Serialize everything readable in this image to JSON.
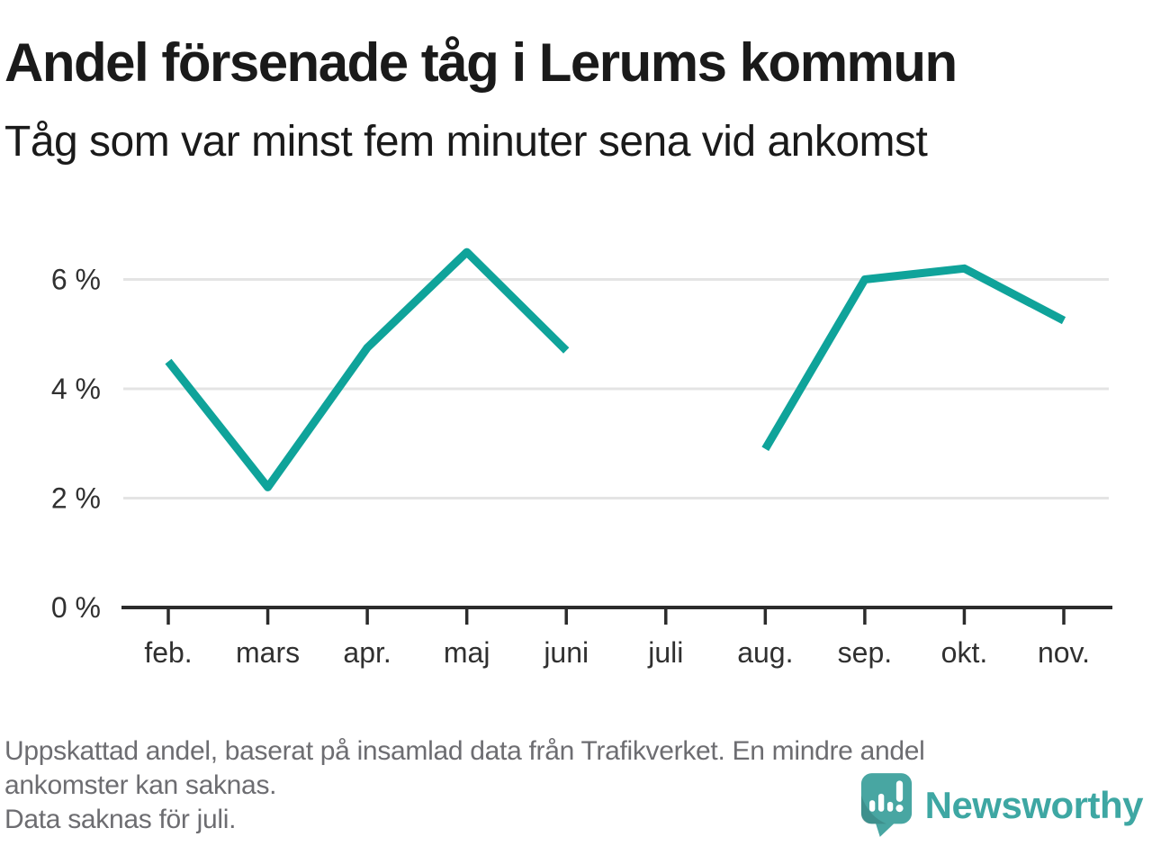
{
  "header": {
    "title": "Andel försenade tåg i Lerums kommun",
    "subtitle": "Tåg som var minst fem minuter sena vid ankomst"
  },
  "chart_data": {
    "type": "line",
    "title": "Andel försenade tåg i Lerums kommun",
    "subtitle": "Tåg som var minst fem minuter sena vid ankomst",
    "categories": [
      "feb.",
      "mars",
      "apr.",
      "maj",
      "juni",
      "juli",
      "aug.",
      "sep.",
      "okt.",
      "nov."
    ],
    "values": [
      4.5,
      2.2,
      4.75,
      6.5,
      4.7,
      null,
      2.9,
      6.0,
      6.2,
      5.25
    ],
    "unit": "%",
    "y_ticks": [
      0,
      2,
      4,
      6
    ],
    "y_tick_labels": [
      "0 %",
      "2 %",
      "4 %",
      "6 %"
    ],
    "ylim": [
      0,
      7
    ],
    "grid": "horizontal-only",
    "legend": "none",
    "missing_data": "juli",
    "line_color": "#0fa39a"
  },
  "footer": {
    "note_lines": [
      "Uppskattad andel, baserat på insamlad data från Trafikverket. En mindre andel",
      "ankomster kan saknas.",
      "Data saknas för juli."
    ],
    "brand_name": "Newsworthy"
  },
  "colors": {
    "line": "#0fa39a",
    "axis": "#2b2b2b",
    "gridline": "#e4e4e4",
    "tick_label": "#303030",
    "title_text": "#1a1a1a",
    "footer_text": "#6d6d71",
    "brand_teal": "#3ea7a3",
    "logo_pin": "#48a6a2"
  }
}
